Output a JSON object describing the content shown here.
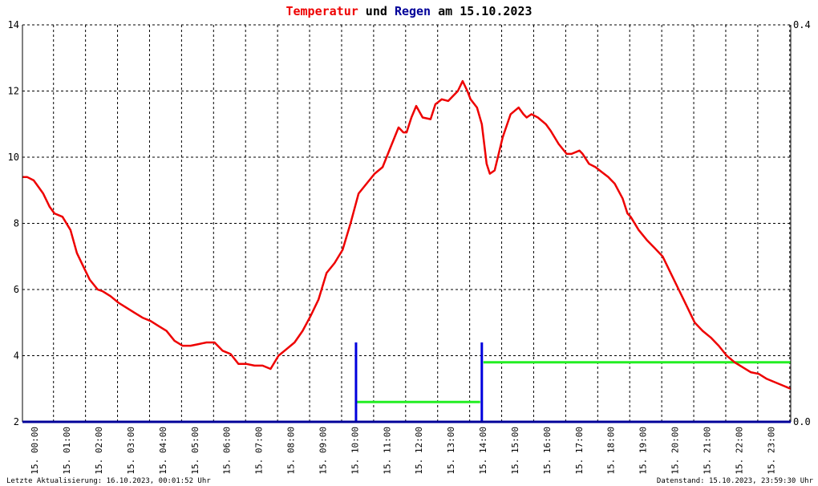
{
  "title": {
    "part1": "Temperatur",
    "part2": " und ",
    "part3": "Regen",
    "part4": " am 15.10.2023",
    "color_temp": "#ee0000",
    "color_rain": "#000099",
    "color_text": "#000000"
  },
  "footer": {
    "left": "Letzte Aktualisierung: 16.10.2023, 00:01:52 Uhr",
    "right": "Datenstand: 15.10.2023, 23:59:30 Uhr"
  },
  "chart_data": {
    "type": "line",
    "x_unit": "hour of day",
    "xlim": [
      0,
      24
    ],
    "ylim": [
      2,
      14
    ],
    "y_ticks": [
      "14",
      "12",
      "10",
      "8",
      "6",
      "4",
      "2"
    ],
    "y2lim": [
      0,
      0.4
    ],
    "y2_ticks": [
      "0.4",
      "0.0"
    ],
    "x_ticks": [
      "15. 00:00",
      "15. 01:00",
      "15. 02:00",
      "15. 03:00",
      "15. 04:00",
      "15. 05:00",
      "15. 06:00",
      "15. 07:00",
      "15. 08:00",
      "15. 09:00",
      "15. 10:00",
      "15. 11:00",
      "15. 12:00",
      "15. 13:00",
      "15. 14:00",
      "15. 15:00",
      "15. 16:00",
      "15. 17:00",
      "15. 18:00",
      "15. 19:00",
      "15. 20:00",
      "15. 21:00",
      "15. 22:00",
      "15. 23:00"
    ],
    "grid": true,
    "colors": {
      "temperature": "#ee0000",
      "rain": "#0000dd",
      "rain_total": "#22ee22",
      "axis": "#000099"
    },
    "temperature": {
      "x": [
        0,
        0.15,
        0.35,
        0.5,
        0.65,
        0.85,
        1.0,
        1.25,
        1.5,
        1.7,
        1.9,
        2.1,
        2.35,
        2.5,
        2.75,
        3.0,
        3.25,
        3.5,
        3.75,
        4.0,
        4.25,
        4.5,
        4.75,
        5.0,
        5.25,
        5.5,
        5.75,
        6.0,
        6.25,
        6.5,
        6.75,
        7.0,
        7.25,
        7.5,
        7.75,
        8.0,
        8.25,
        8.5,
        8.75,
        9.0,
        9.25,
        9.5,
        9.75,
        10.0,
        10.25,
        10.5,
        10.75,
        11.0,
        11.25,
        11.5,
        11.75,
        11.9,
        12.0,
        12.15,
        12.3,
        12.5,
        12.75,
        12.9,
        13.1,
        13.3,
        13.6,
        13.75,
        13.9,
        14.0,
        14.2,
        14.35,
        14.5,
        14.6,
        14.75,
        15.0,
        15.25,
        15.5,
        15.65,
        15.75,
        15.9,
        16.1,
        16.35,
        16.5,
        16.75,
        17.0,
        17.15,
        17.4,
        17.5,
        17.7,
        17.9,
        18.1,
        18.3,
        18.5,
        18.75,
        18.9,
        19.0,
        19.25,
        19.5,
        19.75,
        20.0,
        20.25,
        20.5,
        20.75,
        21.0,
        21.25,
        21.5,
        21.75,
        22.0,
        22.25,
        22.5,
        22.75,
        23.0,
        23.25,
        23.5,
        23.75,
        24.0
      ],
      "y": [
        9.4,
        9.4,
        9.3,
        9.1,
        8.9,
        8.5,
        8.3,
        8.2,
        7.8,
        7.1,
        6.7,
        6.3,
        6.0,
        5.95,
        5.8,
        5.6,
        5.45,
        5.3,
        5.15,
        5.05,
        4.9,
        4.75,
        4.45,
        4.3,
        4.3,
        4.35,
        4.4,
        4.4,
        4.15,
        4.05,
        3.75,
        3.75,
        3.7,
        3.7,
        3.6,
        4.0,
        4.2,
        4.4,
        4.75,
        5.2,
        5.7,
        6.5,
        6.8,
        7.2,
        8.0,
        8.9,
        9.2,
        9.5,
        9.7,
        10.3,
        10.9,
        10.75,
        10.75,
        11.2,
        11.55,
        11.2,
        11.15,
        11.6,
        11.75,
        11.7,
        12.0,
        12.3,
        12.0,
        11.75,
        11.5,
        11.0,
        9.8,
        9.5,
        9.6,
        10.6,
        11.3,
        11.5,
        11.3,
        11.2,
        11.3,
        11.2,
        11.0,
        10.8,
        10.4,
        10.1,
        10.1,
        10.2,
        10.1,
        9.8,
        9.7,
        9.55,
        9.4,
        9.2,
        8.75,
        8.3,
        8.2,
        7.8,
        7.5,
        7.25,
        7.0,
        6.5,
        6.0,
        5.5,
        5.0,
        4.75,
        4.55,
        4.3,
        4.0,
        3.8,
        3.65,
        3.5,
        3.45,
        3.3,
        3.2,
        3.1,
        3.0
      ]
    },
    "rain": {
      "spikes": [
        {
          "x": 10.42,
          "y": 0.08
        },
        {
          "x": 14.35,
          "y": 0.08
        }
      ],
      "daily_total": [
        {
          "x0": 10.45,
          "x1": 14.3,
          "y": 0.02
        },
        {
          "x0": 14.4,
          "x1": 24.0,
          "y": 0.06
        }
      ]
    }
  }
}
